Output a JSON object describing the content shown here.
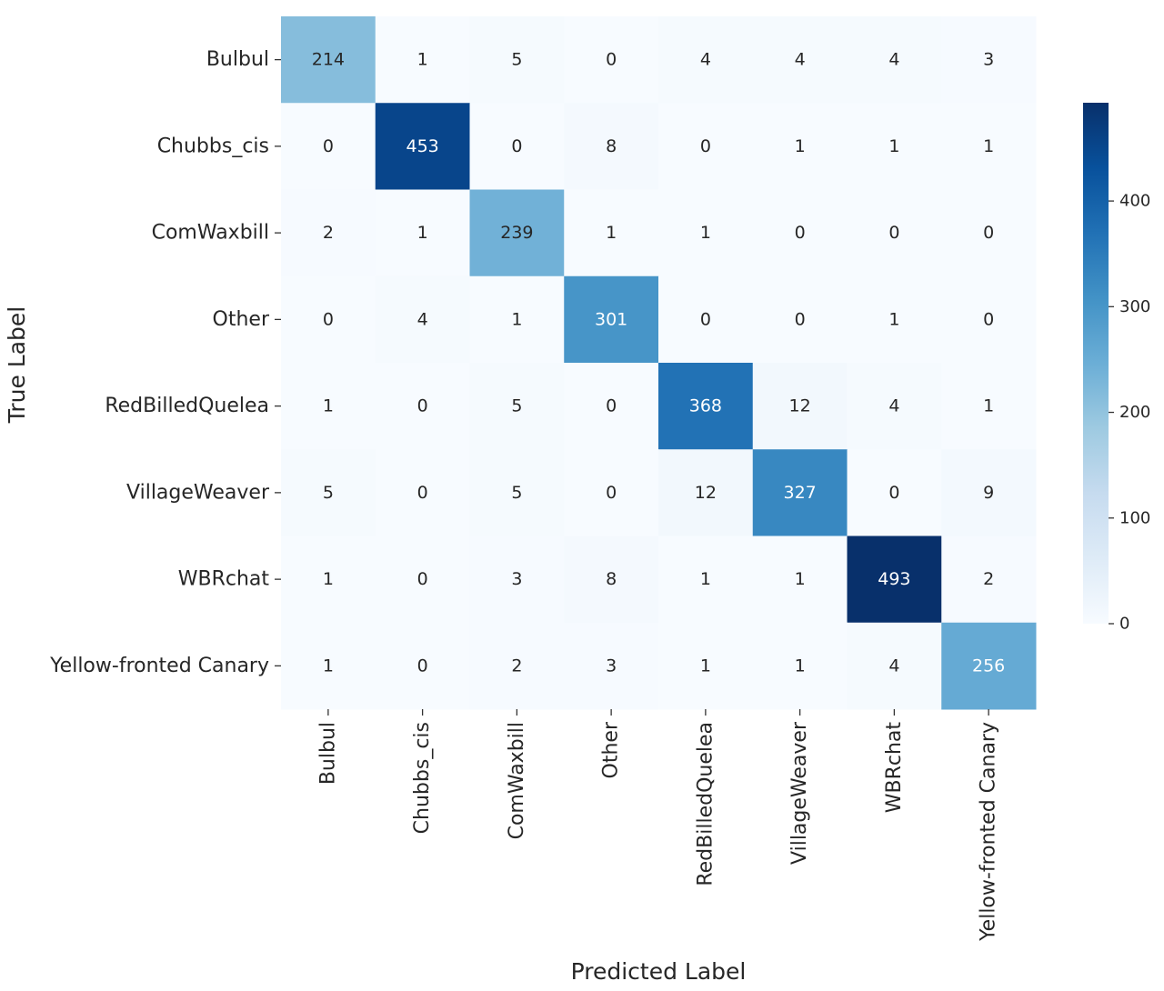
{
  "chart_data": {
    "type": "heatmap",
    "title": "",
    "xlabel": "Predicted Label",
    "ylabel": "True Label",
    "x_categories": [
      "Bulbul",
      "Chubbs_cis",
      "ComWaxbill",
      "Other",
      "RedBilledQuelea",
      "VillageWeaver",
      "WBRchat",
      "Yellow-fronted Canary"
    ],
    "y_categories": [
      "Bulbul",
      "Chubbs_cis",
      "ComWaxbill",
      "Other",
      "RedBilledQuelea",
      "VillageWeaver",
      "WBRchat",
      "Yellow-fronted Canary"
    ],
    "values": [
      [
        214,
        1,
        5,
        0,
        4,
        4,
        4,
        3
      ],
      [
        0,
        453,
        0,
        8,
        0,
        1,
        1,
        1
      ],
      [
        2,
        1,
        239,
        1,
        1,
        0,
        0,
        0
      ],
      [
        0,
        4,
        1,
        301,
        0,
        0,
        1,
        0
      ],
      [
        1,
        0,
        5,
        0,
        368,
        12,
        4,
        1
      ],
      [
        5,
        0,
        5,
        0,
        12,
        327,
        0,
        9
      ],
      [
        1,
        0,
        3,
        8,
        1,
        1,
        493,
        2
      ],
      [
        1,
        0,
        2,
        3,
        1,
        1,
        4,
        256
      ]
    ],
    "colormap": "Blues",
    "color_range": [
      0,
      493
    ],
    "colorbar_ticks": [
      0,
      100,
      200,
      300,
      400
    ],
    "annotations": true
  }
}
